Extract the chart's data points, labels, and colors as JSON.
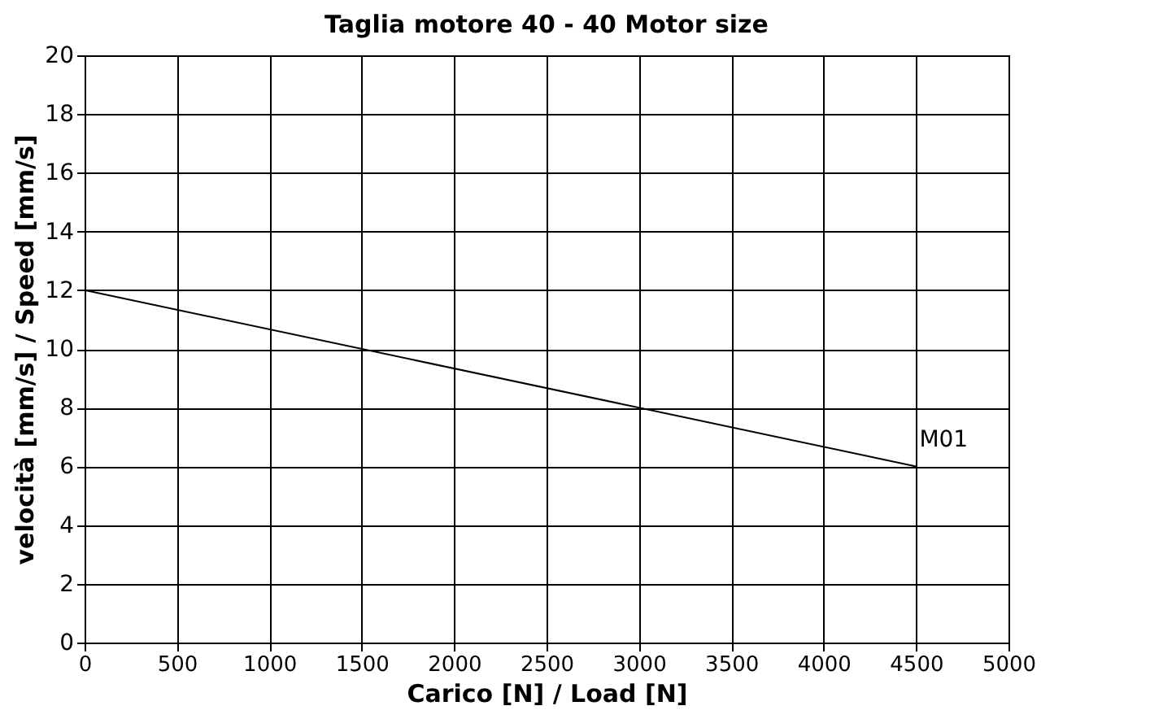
{
  "chart_data": {
    "type": "line",
    "title": "Taglia motore 40 - 40 Motor size",
    "xlabel": "Carico [N] / Load [N]",
    "ylabel": "velocità [mm/s] / Speed [mm/s]",
    "x": [
      0,
      4500
    ],
    "series": [
      {
        "name": "M01",
        "color": "#000000",
        "values": [
          12,
          6
        ]
      }
    ],
    "xlim": [
      0,
      5000
    ],
    "xticks": [
      0,
      500,
      1000,
      1500,
      2000,
      2500,
      3000,
      3500,
      4000,
      4500,
      5000
    ],
    "ylim": [
      0,
      20
    ],
    "yticks": [
      0,
      2,
      4,
      6,
      8,
      10,
      12,
      14,
      16,
      18,
      20
    ],
    "grid": true,
    "legend": false,
    "marker": "none",
    "line_style": "solid"
  }
}
